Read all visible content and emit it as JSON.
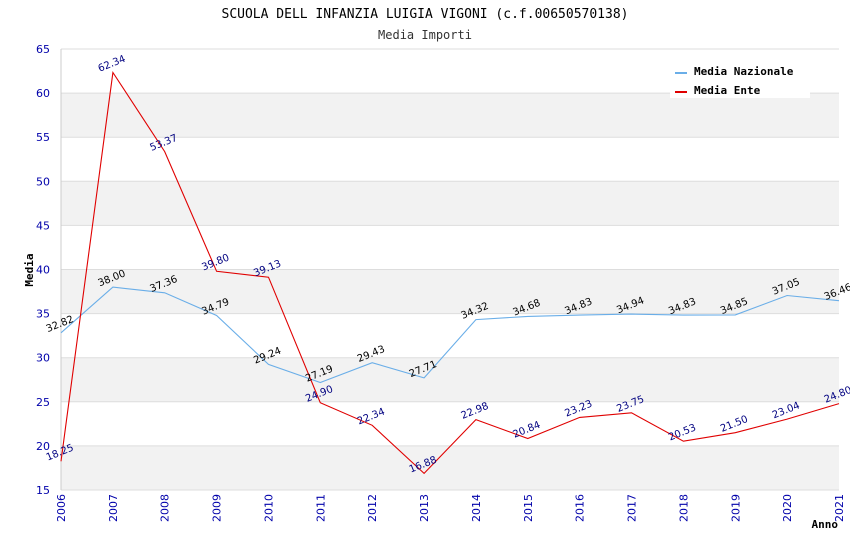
{
  "chart_data": {
    "type": "line",
    "title": "SCUOLA DELL INFANZIA LUIGIA VIGONI (c.f.00650570138)",
    "subtitle": "Media Importi",
    "xlabel": "Anno",
    "ylabel": "Media",
    "ylim": [
      15,
      65
    ],
    "yticks": [
      15,
      20,
      25,
      30,
      35,
      40,
      45,
      50,
      55,
      60,
      65
    ],
    "grid": "horizontal bands",
    "legend_position": "top-right",
    "categories": [
      "2006",
      "2007",
      "2008",
      "2009",
      "2010",
      "2011",
      "2012",
      "2013",
      "2014",
      "2015",
      "2016",
      "2017",
      "2018",
      "2019",
      "2020",
      "2021"
    ],
    "series": [
      {
        "name": "Media Nazionale",
        "color": "#6aaee8",
        "label_color": "#000000",
        "values": [
          32.82,
          38.0,
          37.36,
          34.79,
          29.24,
          27.19,
          29.43,
          27.71,
          34.32,
          34.68,
          34.83,
          34.94,
          34.83,
          34.85,
          37.05,
          36.46
        ],
        "labels": [
          "32.82",
          "38.00",
          "37.36",
          "34.79",
          "29.24",
          "27.19",
          "29.43",
          "27.71",
          "34.32",
          "34.68",
          "34.83",
          "34.94",
          "34.83",
          "34.85",
          "37.05",
          "36.46"
        ]
      },
      {
        "name": "Media Ente",
        "color": "#e00000",
        "label_color": "#000080",
        "values": [
          18.25,
          62.34,
          53.37,
          39.8,
          39.13,
          24.9,
          22.34,
          16.88,
          22.98,
          20.84,
          23.23,
          23.75,
          20.53,
          21.5,
          23.04,
          24.8
        ],
        "labels": [
          "18.25",
          "62.34",
          "53.37",
          "39.80",
          "39.13",
          "24.90",
          "22.34",
          "16.88",
          "22.98",
          "20.84",
          "23.23",
          "23.75",
          "20.53",
          "21.50",
          "23.04",
          "24.80"
        ]
      }
    ]
  }
}
